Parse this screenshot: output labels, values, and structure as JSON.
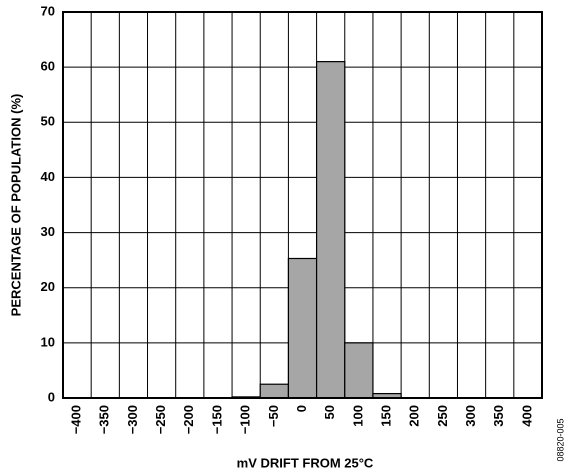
{
  "chart_data": {
    "type": "histogram",
    "x_label": "mV DRIFT FROM 25°C",
    "y_label": "PERCENTAGE OF POPULATION (%)",
    "note": "08820-005",
    "bins": [
      -425,
      -375,
      -325,
      -275,
      -225,
      -175,
      -125,
      -75,
      -25,
      25,
      75,
      125,
      175,
      225,
      275,
      325,
      375,
      425
    ],
    "values": [
      0,
      0,
      0,
      0,
      0,
      0,
      0.2,
      2.5,
      25.3,
      61,
      10,
      0.8,
      0,
      0,
      0,
      0,
      0
    ],
    "color": "#a6a6a6",
    "xlim": [
      -425,
      425
    ],
    "xticks": [
      {
        "value": -400,
        "label": "−400"
      },
      {
        "value": -350,
        "label": "−350"
      },
      {
        "value": -300,
        "label": "−300"
      },
      {
        "value": -250,
        "label": "−250"
      },
      {
        "value": -200,
        "label": "−200"
      },
      {
        "value": -150,
        "label": "−150"
      },
      {
        "value": -100,
        "label": "−100"
      },
      {
        "value": -50,
        "label": "−50"
      },
      0,
      50,
      100,
      150,
      200,
      250,
      300,
      350,
      400
    ],
    "ylim": [
      0,
      70
    ],
    "yticks": [
      0,
      10,
      20,
      30,
      40,
      50,
      60,
      70
    ],
    "grid": true
  }
}
